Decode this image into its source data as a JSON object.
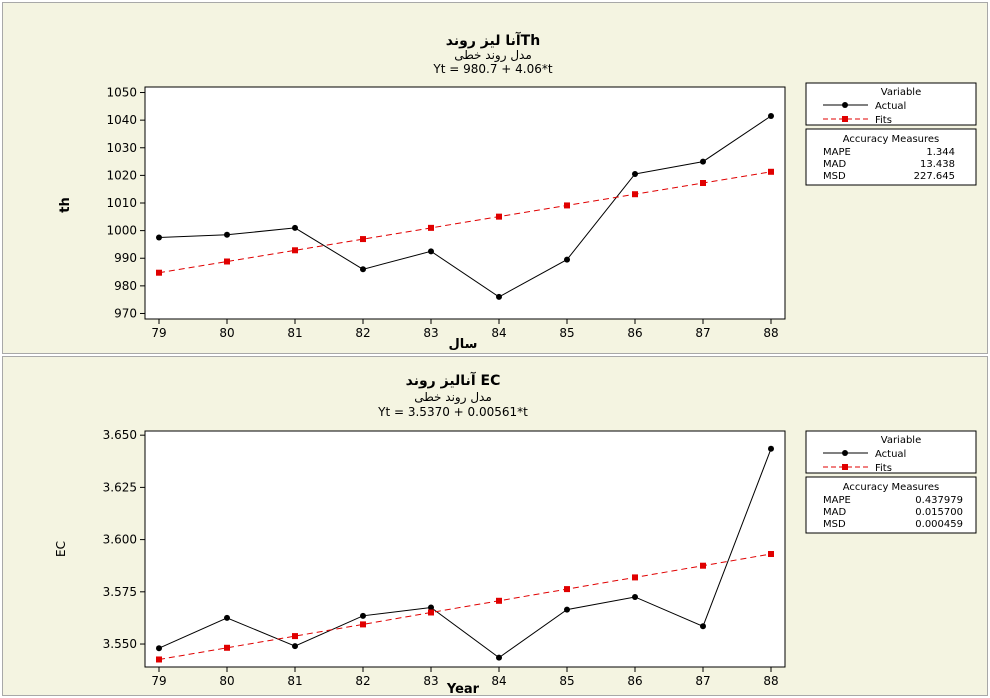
{
  "chart_data": [
    {
      "type": "line",
      "title": "آنا لیز روندTh",
      "subtitle": "مدل روند خطی",
      "equation": "Yt = 980.7 + 4.06*t",
      "xlabel": "سال",
      "ylabel": "th",
      "x": [
        "79",
        "80",
        "81",
        "82",
        "83",
        "84",
        "85",
        "86",
        "87",
        "88"
      ],
      "ylim": [
        968,
        1052
      ],
      "yticks": [
        "970",
        "980",
        "990",
        "1000",
        "1010",
        "1020",
        "1030",
        "1040",
        "1050"
      ],
      "series": [
        {
          "name": "Actual",
          "color": "#000000",
          "dashed": false,
          "values": [
            997.5,
            998.5,
            1001,
            986,
            992.5,
            976,
            989.5,
            1020.5,
            1025,
            1041.5
          ]
        },
        {
          "name": "Fits",
          "color": "#e00000",
          "dashed": true,
          "values": [
            984.76,
            988.82,
            992.88,
            996.94,
            1001.0,
            1005.06,
            1009.12,
            1013.18,
            1017.24,
            1021.3
          ]
        }
      ],
      "legend_title": "Variable",
      "accuracy_title": "Accuracy Measures",
      "accuracy": [
        {
          "label": "MAPE",
          "value": "1.344"
        },
        {
          "label": "MAD",
          "value": "13.438"
        },
        {
          "label": "MSD",
          "value": "227.645"
        }
      ]
    },
    {
      "type": "line",
      "title": "آنالیز روند EC",
      "subtitle": "مدل روند خطی",
      "equation": "Yt = 3.5370 + 0.00561*t",
      "xlabel": "Year",
      "ylabel": "EC",
      "x": [
        "79",
        "80",
        "81",
        "82",
        "83",
        "84",
        "85",
        "86",
        "87",
        "88"
      ],
      "ylim": [
        3.539,
        3.652
      ],
      "yticks": [
        "3.550",
        "3.575",
        "3.600",
        "3.625",
        "3.650"
      ],
      "series": [
        {
          "name": "Actual",
          "color": "#000000",
          "dashed": false,
          "values": [
            3.548,
            3.5625,
            3.549,
            3.5635,
            3.5675,
            3.5435,
            3.5665,
            3.5725,
            3.5585,
            3.6435
          ]
        },
        {
          "name": "Fits",
          "color": "#e00000",
          "dashed": true,
          "values": [
            3.5426,
            3.5482,
            3.5538,
            3.5594,
            3.5651,
            3.5707,
            3.5763,
            3.5819,
            3.5875,
            3.5931
          ]
        }
      ],
      "legend_title": "Variable",
      "accuracy_title": "Accuracy Measures",
      "accuracy": [
        {
          "label": "MAPE",
          "value": "0.437979"
        },
        {
          "label": "MAD",
          "value": "0.015700"
        },
        {
          "label": "MSD",
          "value": "0.000459"
        }
      ]
    }
  ]
}
